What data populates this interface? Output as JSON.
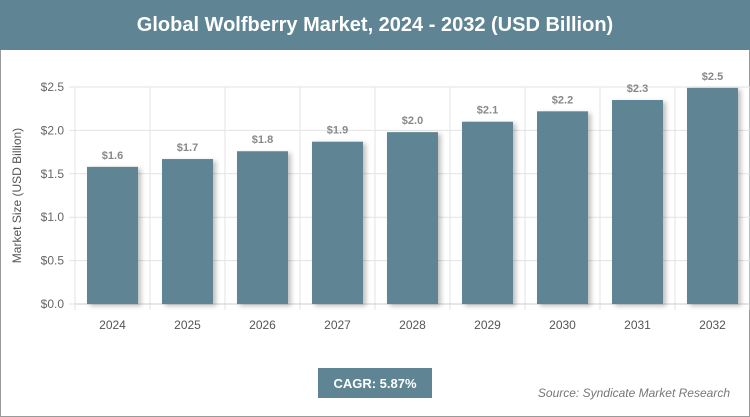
{
  "chart_data": {
    "type": "bar",
    "title": "Global Wolfberry Market, 2024 - 2032 (USD Billion)",
    "ylabel": "Market Size (USD Billion)",
    "xlabel": "",
    "categories": [
      "2024",
      "2025",
      "2026",
      "2027",
      "2028",
      "2029",
      "2030",
      "2031",
      "2032"
    ],
    "values": [
      1.58,
      1.67,
      1.76,
      1.87,
      1.98,
      2.1,
      2.22,
      2.35,
      2.49
    ],
    "data_labels": [
      "$1.6",
      "$1.7",
      "$1.8",
      "$1.9",
      "$2.0",
      "$2.1",
      "$2.2",
      "$2.3",
      "$2.5"
    ],
    "yticks": [
      0,
      0.5,
      1.0,
      1.5,
      2.0,
      2.5
    ],
    "ytick_labels": [
      "$0.0",
      "$0.5",
      "$1.0",
      "$1.5",
      "$2.0",
      "$2.5"
    ],
    "ylim": [
      0,
      2.5
    ],
    "grid": true,
    "bar_color": "#5f8494"
  },
  "cagr": "CAGR: 5.87%",
  "source": "Source: Syndicate Market Research"
}
